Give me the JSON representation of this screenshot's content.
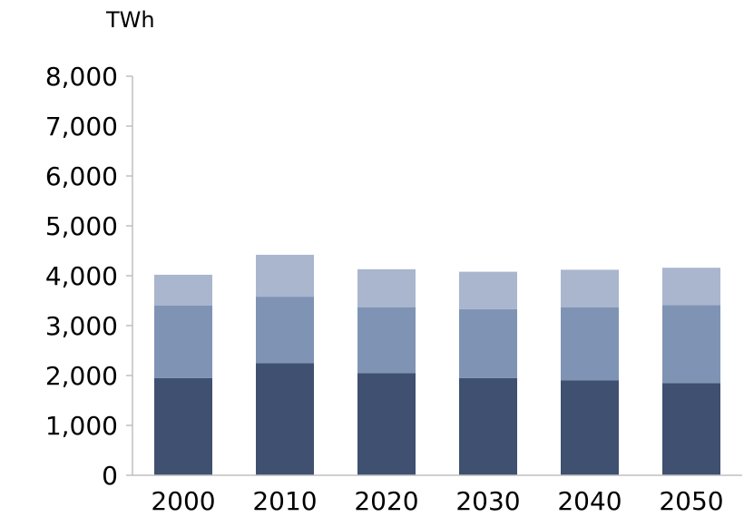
{
  "chart_data": {
    "type": "bar",
    "stacked": true,
    "unit_label": "TWh",
    "categories": [
      "2000",
      "2010",
      "2020",
      "2030",
      "2040",
      "2050"
    ],
    "series": [
      {
        "values": [
          1950,
          2250,
          2050,
          1950,
          1900,
          1850
        ],
        "color": "#3f5070"
      },
      {
        "values": [
          1450,
          1330,
          1320,
          1380,
          1470,
          1560
        ],
        "color": "#7f93b5"
      },
      {
        "values": [
          620,
          840,
          760,
          750,
          750,
          750
        ],
        "color": "#a9b6ce"
      }
    ],
    "yticks": [
      "0",
      "1,000",
      "2,000",
      "3,000",
      "4,000",
      "5,000",
      "6,000",
      "7,000",
      "8,000"
    ],
    "ylim": [
      0,
      8000
    ],
    "grid": false,
    "legend": "none"
  }
}
